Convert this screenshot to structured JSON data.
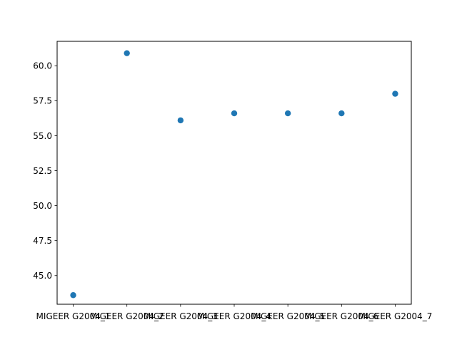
{
  "chart_data": {
    "type": "scatter",
    "title": "",
    "xlabel": "",
    "ylabel": "",
    "categories": [
      "MIGEER G2004_1",
      "MIGEER G2004_2",
      "MIGEER G2004_3",
      "MIGEER G2004_4",
      "MIGEER G2004_5",
      "MIGEER G2004_6",
      "MIGEER G2004_7"
    ],
    "values": [
      43.6,
      60.9,
      56.1,
      56.6,
      56.6,
      56.6,
      58.0
    ],
    "ylim": [
      42.95,
      61.75
    ],
    "yticks": [
      45.0,
      47.5,
      50.0,
      52.5,
      55.0,
      57.5,
      60.0
    ],
    "ytick_labels": [
      "45.0",
      "47.5",
      "50.0",
      "52.5",
      "55.0",
      "57.5",
      "60.0"
    ],
    "grid": false,
    "colors": {
      "marker": "#1f77b4"
    }
  }
}
